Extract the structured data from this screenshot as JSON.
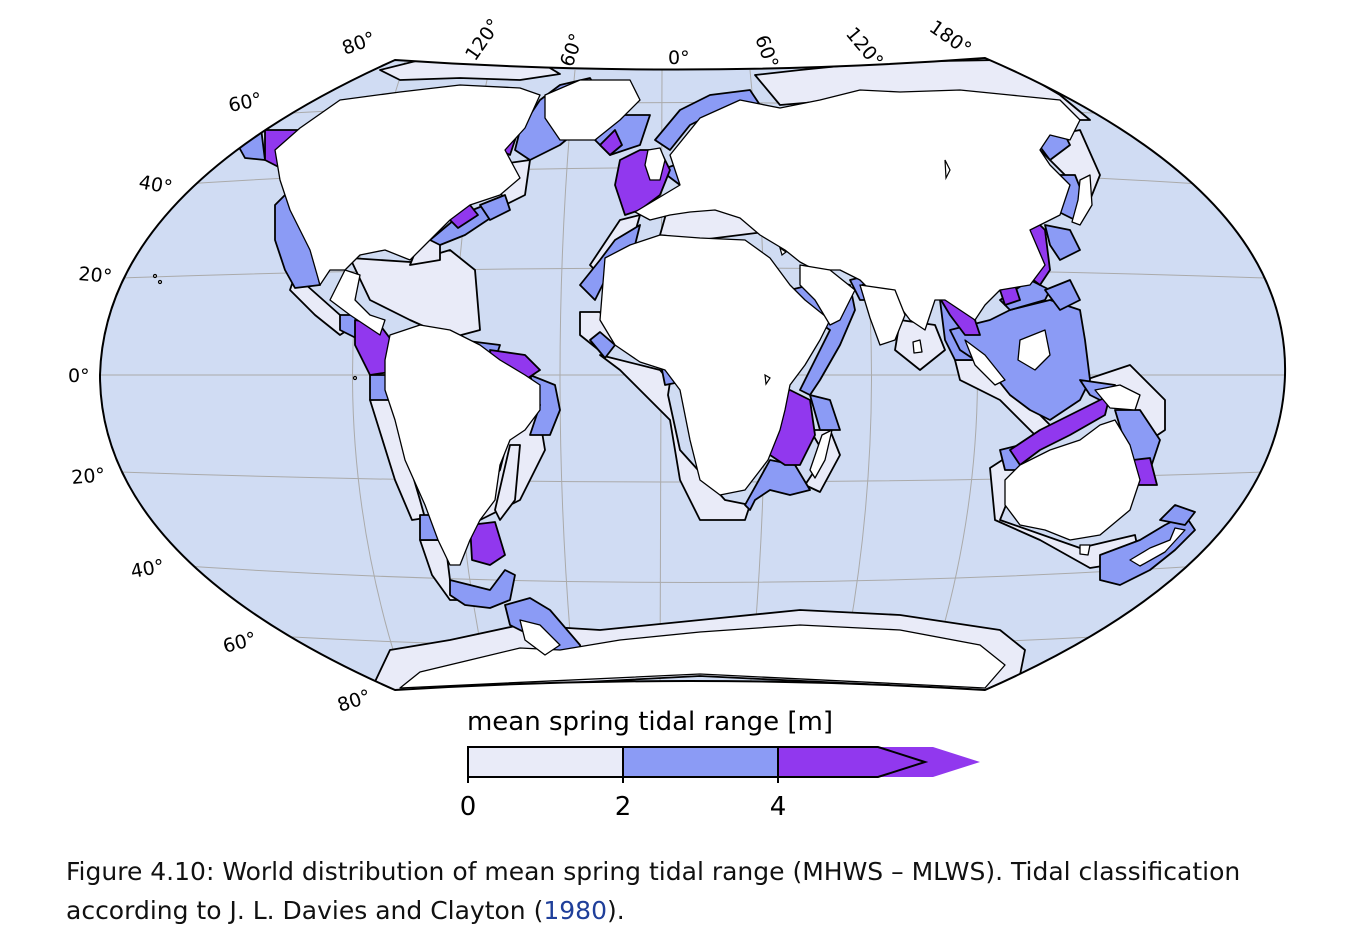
{
  "map": {
    "projection": "Winkel tripel",
    "colors": {
      "ocean": "#d0dcf3",
      "land": "#ffffff",
      "range_0_2": "#e9ebf8",
      "range_2_4": "#8b9bf5",
      "range_4_plus": "#9138ee",
      "graticule": "#aaaaaa",
      "coast": "#000000"
    },
    "longitude_labels": [
      "80°",
      "120°",
      "60°",
      "0°",
      "60°",
      "120°",
      "180°"
    ],
    "latitude_labels": [
      "60°",
      "40°",
      "20°",
      "0°",
      "20°",
      "40°",
      "60°",
      "80°"
    ]
  },
  "colorbar": {
    "title": "mean spring tidal range [m]",
    "ticks": [
      "0",
      "2",
      "4"
    ],
    "bins": [
      {
        "from": 0,
        "to": 2,
        "color": "#e9ebf8"
      },
      {
        "from": 2,
        "to": 4,
        "color": "#8b9bf5"
      },
      {
        "from": 4,
        "to": null,
        "color": "#9138ee",
        "extend": "max"
      }
    ]
  },
  "caption": {
    "label": "Figure 4.10:",
    "text": "World distribution of mean spring tidal range (MHWS – MLWS). Tidal classification according to J. L. Davies and Clayton (",
    "citation_year": "1980",
    "closing": ")."
  }
}
